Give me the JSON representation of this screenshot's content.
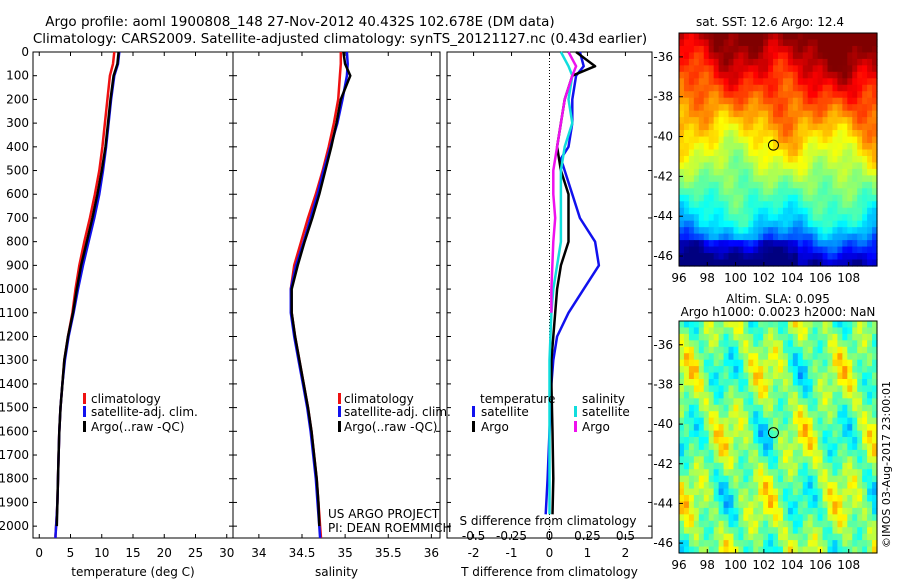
{
  "header": {
    "line1": "Argo profile: aoml 1900808_148 27-Nov-2012 40.432S 102.678E (DM data)",
    "line2": "Climatology: CARS2009. Satellite-adjusted climatology: synTS_20121127.nc (0.43d earlier)"
  },
  "colors": {
    "climatology": "#ee1111",
    "satellite": "#1111ee",
    "argo": "#000000",
    "salinity_sat": "#11dddd",
    "salinity_argo": "#ee11ee"
  },
  "legend_profiles": [
    "climatology",
    "satellite-adj. clim.",
    "Argo(..raw -QC)"
  ],
  "legend_diff": {
    "temperature_title": "temperature",
    "salinity_title": "salinity",
    "temp_items": [
      "satellite",
      "Argo"
    ],
    "sal_items": [
      "satellite",
      "Argo"
    ]
  },
  "project_text": {
    "line1": "US ARGO PROJECT",
    "line2": "PI: DEAN ROEMMICH"
  },
  "credit": "©IMOS 03-Aug-2017 23:00:01",
  "chart_data": [
    {
      "id": "temperature",
      "type": "line",
      "xlabel": "temperature (deg C)",
      "xlim": [
        -1,
        31
      ],
      "xticks": [
        0,
        5,
        10,
        15,
        20,
        25,
        30
      ],
      "ylim": [
        0,
        2050
      ],
      "yticks": [
        0,
        100,
        200,
        300,
        400,
        500,
        600,
        700,
        800,
        900,
        1000,
        1100,
        1200,
        1300,
        1400,
        1500,
        1600,
        1700,
        1800,
        1900,
        2000
      ],
      "y_reversed": true,
      "series": [
        {
          "name": "climatology",
          "color": "#ee1111",
          "x": [
            12.0,
            11.8,
            11.3,
            10.9,
            10.5,
            10.1,
            9.6,
            8.9,
            8.1,
            7.2,
            6.4,
            5.8,
            5.3,
            4.6,
            4.0,
            3.7,
            3.4,
            3.2,
            3.1,
            3.0,
            2.9,
            2.8,
            2.7,
            2.6,
            2.6
          ],
          "y": [
            0,
            50,
            100,
            200,
            300,
            400,
            500,
            600,
            700,
            800,
            900,
            1000,
            1100,
            1200,
            1300,
            1400,
            1500,
            1600,
            1700,
            1800,
            1900,
            1950,
            2000,
            2040,
            2050
          ]
        },
        {
          "name": "satellite-adj. clim.",
          "color": "#1111ee",
          "x": [
            12.8,
            12.6,
            12.0,
            11.5,
            11.1,
            10.7,
            10.2,
            9.6,
            8.8,
            7.9,
            7.0,
            6.2,
            5.5,
            4.7,
            4.1,
            3.7,
            3.4,
            3.2,
            3.1,
            3.0,
            2.9,
            2.8,
            2.7,
            2.6,
            2.6
          ],
          "y": [
            0,
            50,
            100,
            200,
            300,
            400,
            500,
            600,
            700,
            800,
            900,
            1000,
            1100,
            1200,
            1300,
            1400,
            1500,
            1600,
            1700,
            1800,
            1900,
            1950,
            2000,
            2040,
            2050
          ]
        },
        {
          "name": "Argo(..raw -QC)",
          "color": "#000000",
          "x": [
            12.7,
            12.5,
            11.9,
            11.4,
            11.0,
            10.6,
            10.0,
            9.3,
            8.5,
            7.6,
            6.7,
            6.0,
            5.4,
            4.6,
            4.0,
            3.7,
            3.4,
            3.2,
            3.1,
            3.0,
            2.9,
            2.8
          ],
          "y": [
            0,
            50,
            100,
            200,
            300,
            400,
            500,
            600,
            700,
            800,
            900,
            1000,
            1100,
            1200,
            1300,
            1400,
            1500,
            1600,
            1700,
            1800,
            1900,
            2000
          ]
        }
      ]
    },
    {
      "id": "salinity",
      "type": "line",
      "xlabel": "salinity",
      "xlim": [
        33.7,
        36.1
      ],
      "xticks": [
        34,
        34.5,
        35,
        35.5,
        36
      ],
      "xticklabels": [
        "34",
        "34.5",
        "35",
        "35.5",
        "36"
      ],
      "ylim": [
        0,
        2050
      ],
      "y_reversed": true,
      "series": [
        {
          "name": "climatology",
          "color": "#ee1111",
          "x": [
            34.95,
            34.95,
            34.94,
            34.92,
            34.87,
            34.81,
            34.74,
            34.66,
            34.57,
            34.49,
            34.41,
            34.37,
            34.38,
            34.42,
            34.47,
            34.52,
            34.57,
            34.61,
            34.64,
            34.67,
            34.69,
            34.7,
            34.71,
            34.72
          ],
          "y": [
            0,
            50,
            100,
            200,
            300,
            400,
            500,
            600,
            700,
            800,
            900,
            1000,
            1100,
            1200,
            1300,
            1400,
            1500,
            1600,
            1700,
            1800,
            1900,
            1950,
            2000,
            2050
          ]
        },
        {
          "name": "satellite-adj. clim.",
          "color": "#1111ee",
          "x": [
            35.02,
            35.03,
            35.02,
            34.97,
            34.91,
            34.83,
            34.75,
            34.68,
            34.6,
            34.52,
            34.43,
            34.37,
            34.37,
            34.41,
            34.46,
            34.51,
            34.56,
            34.6,
            34.63,
            34.66,
            34.68,
            34.69,
            34.7,
            34.71
          ],
          "y": [
            0,
            50,
            100,
            200,
            300,
            400,
            500,
            600,
            700,
            800,
            900,
            1000,
            1100,
            1200,
            1300,
            1400,
            1500,
            1600,
            1700,
            1800,
            1900,
            1950,
            2000,
            2050
          ]
        },
        {
          "name": "Argo(..raw -QC)",
          "color": "#000000",
          "x": [
            34.98,
            35.0,
            35.06,
            34.95,
            34.9,
            34.84,
            34.77,
            34.7,
            34.62,
            34.53,
            34.45,
            34.38,
            34.38,
            34.42,
            34.47,
            34.52,
            34.57,
            34.61,
            34.64,
            34.67,
            34.69,
            34.7
          ],
          "y": [
            0,
            50,
            100,
            200,
            300,
            400,
            500,
            600,
            700,
            800,
            900,
            1000,
            1100,
            1200,
            1300,
            1400,
            1500,
            1600,
            1700,
            1800,
            1900,
            2000
          ]
        }
      ]
    },
    {
      "id": "difference",
      "type": "line",
      "xlabel": "T difference from climatology",
      "xlabel_top": "S difference from climatology",
      "xlim": [
        -2.7,
        2.7
      ],
      "xticks": [
        -2,
        -1,
        0,
        1,
        2
      ],
      "xticklabels": [
        "-2",
        "-1",
        "0",
        "1",
        "2"
      ],
      "sticks": [
        -0.5,
        -0.25,
        0,
        0.25,
        0.5
      ],
      "sticklabels": [
        "-0.5",
        "-0.25",
        "0",
        "0.25",
        "0.5"
      ],
      "ylim": [
        0,
        2050
      ],
      "y_reversed": true,
      "series": [
        {
          "name": "temperature satellite",
          "color": "#1111ee",
          "x": [
            0.8,
            0.9,
            0.7,
            0.6,
            0.6,
            0.5,
            0.3,
            0.6,
            0.8,
            1.2,
            1.3,
            0.9,
            0.5,
            0.2,
            0.1,
            0.05,
            0.0,
            -0.05,
            -0.1
          ],
          "y": [
            0,
            60,
            100,
            200,
            300,
            400,
            450,
            600,
            700,
            800,
            900,
            1000,
            1100,
            1200,
            1300,
            1400,
            1600,
            1800,
            1950
          ]
        },
        {
          "name": "temperature Argo",
          "color": "#000000",
          "x": [
            0.7,
            1.2,
            0.6,
            0.4,
            0.3,
            0.2,
            0.3,
            0.5,
            0.5,
            0.5,
            0.3,
            0.2,
            0.15,
            0.1,
            0.05,
            0.05,
            0.08,
            0.1,
            0.08
          ],
          "y": [
            0,
            60,
            100,
            200,
            300,
            400,
            500,
            600,
            700,
            800,
            900,
            1000,
            1100,
            1200,
            1300,
            1400,
            1600,
            1800,
            1950
          ]
        },
        {
          "name": "salinity satellite",
          "color": "#11dddd",
          "x": [
            0.3,
            0.5,
            0.6,
            0.5,
            0.6,
            0.4,
            0.3,
            0.3,
            0.3,
            0.3,
            0.2,
            0.1,
            0.05,
            0.0,
            0.0,
            0.0
          ],
          "y": [
            0,
            60,
            100,
            200,
            300,
            400,
            500,
            600,
            700,
            800,
            900,
            1000,
            1100,
            1300,
            1600,
            1950
          ]
        },
        {
          "name": "salinity Argo",
          "color": "#ee11ee",
          "x": [
            0.5,
            0.7,
            0.6,
            0.4,
            0.3,
            0.2,
            0.1,
            0.1,
            0.15,
            0.1,
            0.05,
            0.05
          ],
          "y": [
            0,
            60,
            100,
            200,
            300,
            400,
            500,
            600,
            700,
            800,
            1000,
            1100
          ]
        }
      ]
    },
    {
      "id": "sst_map",
      "type": "heatmap",
      "title": "sat. SST: 12.6  Argo: 12.4",
      "xlim": [
        96,
        110
      ],
      "xticks": [
        96,
        98,
        100,
        102,
        104,
        106,
        108
      ],
      "ylim": [
        -46.5,
        -34.8
      ],
      "yticks": [
        -36,
        -38,
        -40,
        -42,
        -44,
        -46
      ],
      "marker": {
        "lon": 102.678,
        "lat": -40.432
      }
    },
    {
      "id": "sla_map",
      "type": "heatmap",
      "title": "Altim. SLA: 0.095",
      "subtitle": "Argo h1000: 0.0023 h2000: NaN",
      "xlim": [
        96,
        110
      ],
      "xticks": [
        96,
        98,
        100,
        102,
        104,
        106,
        108
      ],
      "ylim": [
        -46.5,
        -34.8
      ],
      "yticks": [
        -36,
        -38,
        -40,
        -42,
        -44,
        -46
      ],
      "marker": {
        "lon": 102.678,
        "lat": -40.432
      }
    }
  ]
}
